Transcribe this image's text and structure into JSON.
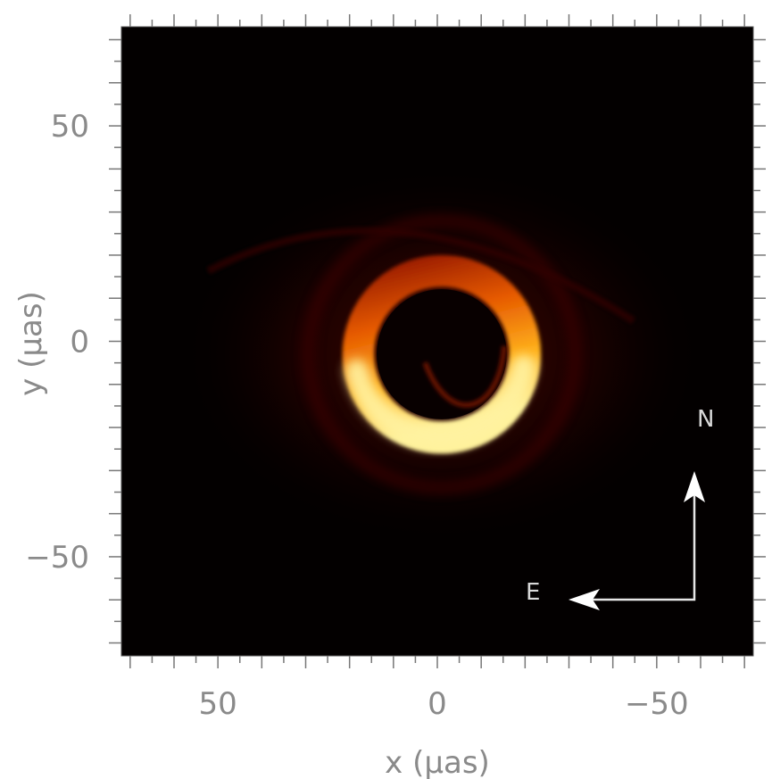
{
  "chart_data": {
    "type": "heatmap",
    "title": "",
    "xlabel": "x  (μas)",
    "ylabel": "y  (μas)",
    "xlim": [
      72,
      -72
    ],
    "ylim": [
      -73,
      73
    ],
    "x_ticks": [
      {
        "value": 50,
        "label": "50"
      },
      {
        "value": 0,
        "label": "0"
      },
      {
        "value": -50,
        "label": "−50"
      }
    ],
    "y_ticks": [
      {
        "value": 50,
        "label": "50"
      },
      {
        "value": 0,
        "label": "0"
      },
      {
        "value": -50,
        "label": "−50"
      }
    ],
    "minor_tick_step": 10,
    "grid": false,
    "colormap": [
      "#000000",
      "#3a0000",
      "#8b1a00",
      "#e05a00",
      "#ffb020",
      "#fff4a0"
    ],
    "background_color": "#030000",
    "features": {
      "ring_center": [
        -1,
        -3
      ],
      "ring_radius": 19,
      "bright_arc": "bottom",
      "brightest_position_angle_deg": 215
    },
    "compass": {
      "north_label": "N",
      "east_label": "E"
    }
  }
}
